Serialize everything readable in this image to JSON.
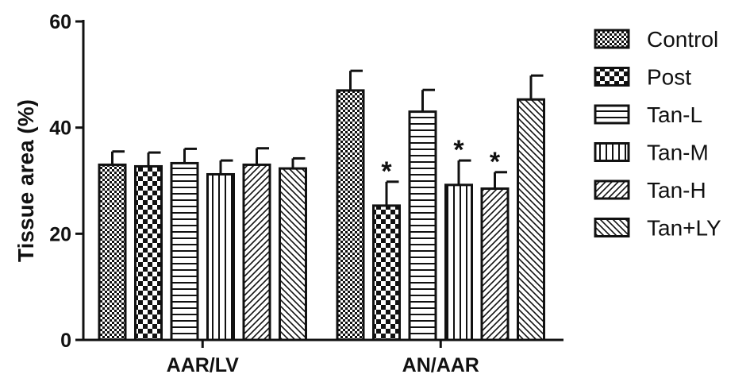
{
  "chart_data": {
    "type": "bar",
    "title": "",
    "xlabel": "",
    "ylabel": "Tissue area (%)",
    "ylim": [
      0,
      60
    ],
    "yticks": [
      0,
      20,
      40,
      60
    ],
    "categories": [
      "AAR/LV",
      "AN/AAR"
    ],
    "grid": false,
    "legend_position": "right",
    "series": [
      {
        "name": "Control",
        "pattern": "dense-checker",
        "values": [
          33.0,
          47.0
        ],
        "errors": [
          2.5,
          3.7
        ],
        "annotations": [
          "",
          ""
        ]
      },
      {
        "name": "Post",
        "pattern": "checker",
        "values": [
          32.7,
          25.3
        ],
        "errors": [
          2.6,
          4.5
        ],
        "annotations": [
          "",
          "*"
        ]
      },
      {
        "name": "Tan-L",
        "pattern": "horizontal-lines",
        "values": [
          33.3,
          43.0
        ],
        "errors": [
          2.7,
          4.1
        ],
        "annotations": [
          "",
          ""
        ]
      },
      {
        "name": "Tan-M",
        "pattern": "vertical-lines",
        "values": [
          31.2,
          29.2
        ],
        "errors": [
          2.6,
          4.6
        ],
        "annotations": [
          "",
          "*"
        ]
      },
      {
        "name": "Tan-H",
        "pattern": "diagonal-up",
        "values": [
          33.0,
          28.5
        ],
        "errors": [
          3.1,
          3.1
        ],
        "annotations": [
          "",
          "*"
        ]
      },
      {
        "name": "Tan+LY",
        "pattern": "diagonal-down",
        "values": [
          32.3,
          45.3
        ],
        "errors": [
          1.9,
          4.5
        ],
        "annotations": [
          "",
          ""
        ]
      }
    ]
  }
}
